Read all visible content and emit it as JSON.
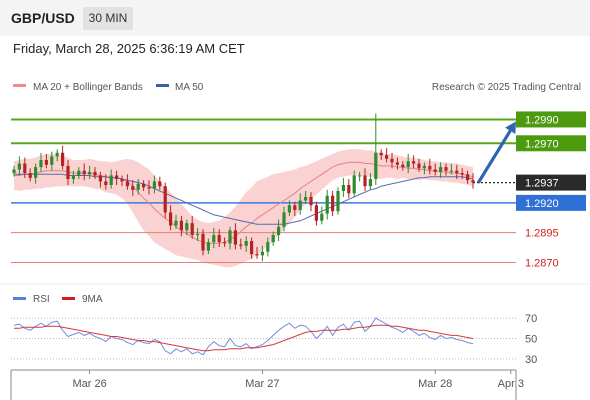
{
  "header": {
    "symbol": "GBP/USD",
    "timeframe": "30 MIN"
  },
  "timestamp": "Friday, March 28, 2025 6:36:19 AM CET",
  "legend": {
    "ma20_bb": "MA 20 + Bollinger Bands",
    "ma50": "MA 50",
    "credit": "Research © 2025 Trading Central",
    "rsi": "RSI",
    "rsi_ma": "9MA"
  },
  "colors": {
    "up": "#2e8b2e",
    "down": "#b42222",
    "band": "#f9caca",
    "ma20": "#e38585",
    "ma50": "#5a6aa8",
    "resistance": "#5aa618",
    "current": "#2a2a2a",
    "support": "#3a7be0",
    "minor_support": "#e87c7c",
    "arrow": "#2f64b0",
    "rsi": "#6f8fe0",
    "rsi_ma": "#d43a3a"
  },
  "chart_data": [
    {
      "type": "candlestick",
      "pair": "GBP/USD",
      "interval": "30 MIN",
      "y_range": [
        1.2862,
        1.3008
      ],
      "x_labels": [
        {
          "label": "Mar 26",
          "index": 14
        },
        {
          "label": "Mar 27",
          "index": 46
        },
        {
          "label": "Mar 28",
          "index": 78
        },
        {
          "label": "Apr 3",
          "index": 92
        }
      ],
      "levels": [
        {
          "value": 1.299,
          "label": "1.2990",
          "kind": "resistance"
        },
        {
          "value": 1.297,
          "label": "1.2970",
          "kind": "resistance"
        },
        {
          "value": 1.2937,
          "label": "1.2937",
          "kind": "current"
        },
        {
          "value": 1.292,
          "label": "1.2920",
          "kind": "support"
        },
        {
          "value": 1.2895,
          "label": "1.2895",
          "kind": "minor_support"
        },
        {
          "value": 1.287,
          "label": "1.2870",
          "kind": "minor_support"
        }
      ],
      "forecast_arrow": {
        "from_index": 86,
        "from_value": 1.2937,
        "to_index": 92,
        "to_value": 1.299
      },
      "closes": [
        1.2948,
        1.2953,
        1.2945,
        1.2941,
        1.295,
        1.2956,
        1.2952,
        1.2959,
        1.2962,
        1.2951,
        1.294,
        1.2943,
        1.2947,
        1.2944,
        1.2946,
        1.2943,
        1.2938,
        1.2935,
        1.2943,
        1.294,
        1.2938,
        1.2934,
        1.2931,
        1.2936,
        1.2933,
        1.2932,
        1.2938,
        1.2934,
        1.2912,
        1.2901,
        1.2905,
        1.2897,
        1.2903,
        1.2893,
        1.2894,
        1.288,
        1.2887,
        1.2893,
        1.2887,
        1.2886,
        1.2897,
        1.2885,
        1.2884,
        1.2888,
        1.2877,
        1.2876,
        1.2879,
        1.2887,
        1.2893,
        1.29,
        1.2912,
        1.2918,
        1.2914,
        1.2922,
        1.2925,
        1.2918,
        1.2905,
        1.2911,
        1.2926,
        1.2913,
        1.293,
        1.2935,
        1.2928,
        1.2943,
        1.2943,
        1.2934,
        1.294,
        1.2962,
        1.296,
        1.2957,
        1.2954,
        1.2952,
        1.295,
        1.2955,
        1.2953,
        1.2949,
        1.2951,
        1.2948,
        1.2946,
        1.295,
        1.2947,
        1.2947,
        1.2945,
        1.2944,
        1.2939,
        1.2937
      ],
      "ma20": [
        1.2943,
        1.2943,
        1.2944,
        1.2944,
        1.2945,
        1.2946,
        1.2947,
        1.2947,
        1.2947,
        1.2947,
        1.2946,
        1.2945,
        1.2945,
        1.2945,
        1.2945,
        1.2944,
        1.2943,
        1.2942,
        1.2941,
        1.2941,
        1.294,
        1.2938,
        1.2934,
        1.2929,
        1.2924,
        1.292,
        1.2915,
        1.2911,
        1.2907,
        1.2904,
        1.29,
        1.2897,
        1.2894,
        1.2891,
        1.2889,
        1.2887,
        1.2886,
        1.2886,
        1.2886,
        1.2887,
        1.2889,
        1.2892,
        1.2896,
        1.29,
        1.2903,
        1.2907,
        1.291,
        1.2913,
        1.2916,
        1.2919,
        1.2922,
        1.2925,
        1.2928,
        1.2932,
        1.2935,
        1.2938,
        1.2941,
        1.2944,
        1.2947,
        1.295,
        1.2952,
        1.2953,
        1.2954,
        1.2954,
        1.2954,
        1.2953,
        1.2953,
        1.2952,
        1.2951,
        1.2951,
        1.2951,
        1.295,
        1.295,
        1.2949,
        1.2949,
        1.2948,
        1.2948,
        1.2947,
        1.2947,
        1.2946,
        1.2946,
        1.2945,
        1.2945,
        1.2944,
        1.2943,
        1.2942
      ],
      "bb_width": [
        0.0012,
        0.0013,
        0.0013,
        0.0013,
        0.0013,
        0.0014,
        0.0014,
        0.0014,
        0.0013,
        0.0013,
        0.0012,
        0.0011,
        0.0011,
        0.0011,
        0.0012,
        0.0012,
        0.0012,
        0.0013,
        0.0013,
        0.0014,
        0.0016,
        0.0019,
        0.0022,
        0.0025,
        0.0027,
        0.0028,
        0.0028,
        0.0027,
        0.0026,
        0.0025,
        0.0024,
        0.0022,
        0.002,
        0.0018,
        0.0017,
        0.0017,
        0.0017,
        0.0018,
        0.0019,
        0.0021,
        0.0023,
        0.0025,
        0.0027,
        0.0029,
        0.003,
        0.0031,
        0.003,
        0.0029,
        0.0028,
        0.0026,
        0.0024,
        0.0022,
        0.002,
        0.0018,
        0.0016,
        0.0015,
        0.0014,
        0.0013,
        0.0012,
        0.0011,
        0.0011,
        0.0011,
        0.0011,
        0.0011,
        0.0011,
        0.0011,
        0.0011,
        0.0011,
        0.0011,
        0.001,
        0.001,
        0.001,
        0.0009,
        0.0009,
        0.0009,
        0.0009,
        0.0008,
        0.0008,
        0.0008,
        0.0008,
        0.0008,
        0.0008,
        0.0008,
        0.0008,
        0.0008,
        0.0008
      ],
      "ma50": [
        1.2944,
        1.2944,
        1.2944,
        1.2944,
        1.2944,
        1.2944,
        1.2944,
        1.2944,
        1.2944,
        1.2944,
        1.2943,
        1.2943,
        1.2943,
        1.2943,
        1.2943,
        1.2942,
        1.2942,
        1.2942,
        1.2941,
        1.2941,
        1.294,
        1.2939,
        1.2938,
        1.2937,
        1.2936,
        1.2934,
        1.2932,
        1.293,
        1.2928,
        1.2926,
        1.2924,
        1.2922,
        1.292,
        1.2918,
        1.2916,
        1.2914,
        1.2912,
        1.291,
        1.2909,
        1.2908,
        1.2907,
        1.2906,
        1.2905,
        1.2904,
        1.2903,
        1.2902,
        1.2902,
        1.2902,
        1.2902,
        1.2902,
        1.2902,
        1.2903,
        1.2904,
        1.2905,
        1.2907,
        1.2909,
        1.2911,
        1.2913,
        1.2915,
        1.2917,
        1.2919,
        1.2921,
        1.2923,
        1.2925,
        1.2927,
        1.2929,
        1.2931,
        1.2932,
        1.2934,
        1.2935,
        1.2936,
        1.2937,
        1.2938,
        1.2939,
        1.294,
        1.2941,
        1.2941,
        1.2942,
        1.2942,
        1.2942,
        1.2942,
        1.2942,
        1.2942,
        1.2942,
        1.2941,
        1.294
      ]
    },
    {
      "type": "line",
      "name": "RSI",
      "y_range": [
        25,
        75
      ],
      "y_ticks": [
        30,
        50,
        70
      ],
      "series": [
        {
          "name": "RSI",
          "values": [
            63,
            64,
            60,
            58,
            62,
            65,
            62,
            66,
            67,
            58,
            52,
            54,
            56,
            53,
            55,
            52,
            50,
            47,
            52,
            50,
            49,
            46,
            44,
            48,
            46,
            45,
            49,
            47,
            38,
            35,
            40,
            37,
            40,
            35,
            37,
            34,
            42,
            47,
            43,
            42,
            50,
            43,
            42,
            45,
            40,
            42,
            44,
            48,
            53,
            58,
            62,
            65,
            60,
            63,
            62,
            57,
            50,
            55,
            62,
            53,
            61,
            64,
            58,
            66,
            67,
            57,
            62,
            70,
            67,
            64,
            61,
            59,
            56,
            60,
            57,
            53,
            55,
            51,
            49,
            53,
            50,
            51,
            49,
            48,
            46,
            45
          ]
        },
        {
          "name": "9MA",
          "values": [
            60,
            60,
            61,
            61,
            61,
            61,
            62,
            62,
            62,
            61,
            60,
            59,
            58,
            57,
            56,
            55,
            54,
            53,
            52,
            52,
            51,
            50,
            49,
            48,
            48,
            47,
            47,
            46,
            45,
            44,
            43,
            42,
            41,
            40,
            39,
            38,
            38,
            39,
            39,
            39,
            40,
            40,
            40,
            41,
            41,
            41,
            42,
            43,
            44,
            46,
            48,
            50,
            52,
            54,
            56,
            57,
            57,
            58,
            58,
            58,
            58,
            59,
            59,
            60,
            61,
            61,
            62,
            63,
            63,
            63,
            62,
            62,
            61,
            60,
            59,
            58,
            58,
            57,
            56,
            55,
            54,
            53,
            53,
            52,
            51,
            50
          ]
        }
      ]
    }
  ]
}
